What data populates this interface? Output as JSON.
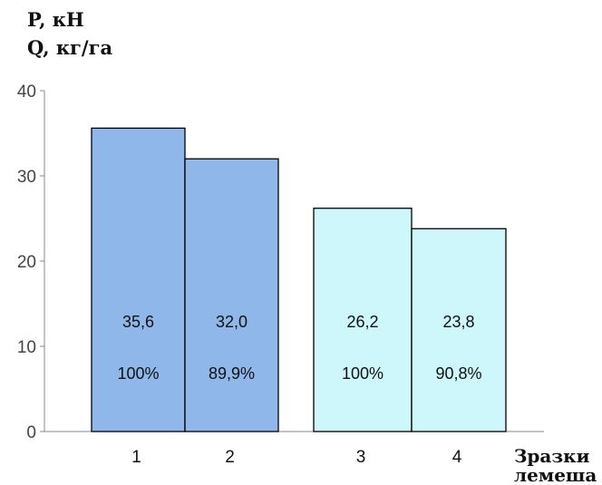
{
  "chart_data": {
    "type": "bar",
    "y_label_lines": [
      "P, кН",
      "Q, кг/га"
    ],
    "x_label_lines": [
      "Зразки",
      "лемеша"
    ],
    "ylim": [
      0,
      40
    ],
    "yticks": [
      "0",
      "10",
      "20",
      "30",
      "40"
    ],
    "categories": [
      "1",
      "2",
      "3",
      "4"
    ],
    "values": [
      35.6,
      32.0,
      26.2,
      23.8
    ],
    "value_labels": [
      "35,6",
      "32,0",
      "26,2",
      "23,8"
    ],
    "percent_labels": [
      "100%",
      "89,9%",
      "100%",
      "90,8%"
    ],
    "bar_colors": [
      "#8fb7ea",
      "#8fb7ea",
      "#cdf7fb",
      "#cdf7fb"
    ],
    "grid": false,
    "legend": "none"
  }
}
